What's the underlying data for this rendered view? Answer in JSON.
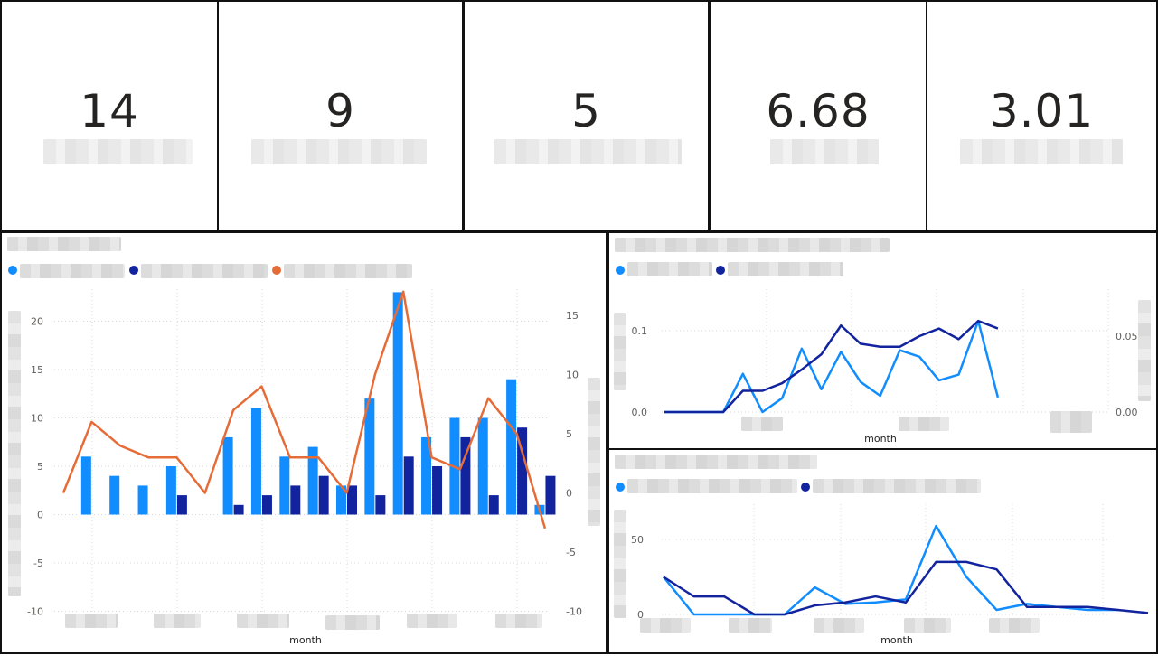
{
  "kpis": [
    {
      "value": "14"
    },
    {
      "value": "9"
    },
    {
      "value": "5"
    },
    {
      "value": "6.68"
    },
    {
      "value": "3.01"
    }
  ],
  "colors": {
    "series1": "#118DFF",
    "series2": "#12239E",
    "series3": "#E66C37",
    "grid": "#d9d9d9"
  },
  "chart_data": [
    {
      "type": "bar",
      "xlabel": "month",
      "y_left_ticks": [
        "20",
        "15",
        "10",
        "5",
        "0",
        "-5",
        "-10"
      ],
      "y_right_ticks": [
        "15",
        "10",
        "5",
        "0",
        "-5",
        "-10"
      ],
      "ylim_left": [
        -10,
        23
      ],
      "ylim_right": [
        -10,
        17
      ],
      "series": [
        {
          "kind": "bar",
          "axis": "left",
          "values": [
            6,
            4,
            3,
            5,
            null,
            8,
            11,
            6,
            7,
            3,
            12,
            23,
            8,
            10,
            10,
            14,
            1
          ]
        },
        {
          "kind": "bar",
          "axis": "left",
          "values": [
            null,
            null,
            null,
            2,
            null,
            1,
            2,
            3,
            4,
            3,
            2,
            6,
            5,
            8,
            2,
            9,
            4
          ]
        },
        {
          "kind": "line",
          "axis": "right",
          "values": [
            0,
            6,
            4,
            3,
            3,
            0,
            7,
            9,
            3,
            3,
            0,
            10,
            17,
            3,
            2,
            8,
            5,
            -3
          ]
        }
      ]
    },
    {
      "type": "line",
      "xlabel": "month",
      "y_left_ticks": [
        "0.1",
        "0.0"
      ],
      "y_right_ticks": [
        "0.05",
        "0.00"
      ],
      "series": [
        {
          "axis": "left",
          "values": [
            0,
            0,
            0,
            0,
            0.047,
            0,
            0.017,
            0.078,
            0.028,
            0.074,
            0.037,
            0.02,
            0.076,
            0.068,
            0.039,
            0.046,
            0.112,
            0.018
          ]
        },
        {
          "axis": "right",
          "values": [
            0,
            0,
            0,
            0,
            0.014,
            0.014,
            0.019,
            0.028,
            0.038,
            0.057,
            0.045,
            0.043,
            0.043,
            0.05,
            0.055,
            0.048,
            0.06,
            0.055
          ]
        }
      ]
    },
    {
      "type": "line",
      "xlabel": "month",
      "y_ticks": [
        "50",
        "0"
      ],
      "series": [
        {
          "values": [
            25,
            0,
            0,
            0,
            0,
            18,
            7,
            8,
            10,
            59,
            25,
            3,
            7,
            5,
            3,
            3
          ]
        },
        {
          "values": [
            25,
            12,
            12,
            0,
            0,
            6,
            8,
            12,
            8,
            35,
            35,
            30,
            5,
            5,
            5,
            3,
            1
          ]
        }
      ]
    }
  ]
}
